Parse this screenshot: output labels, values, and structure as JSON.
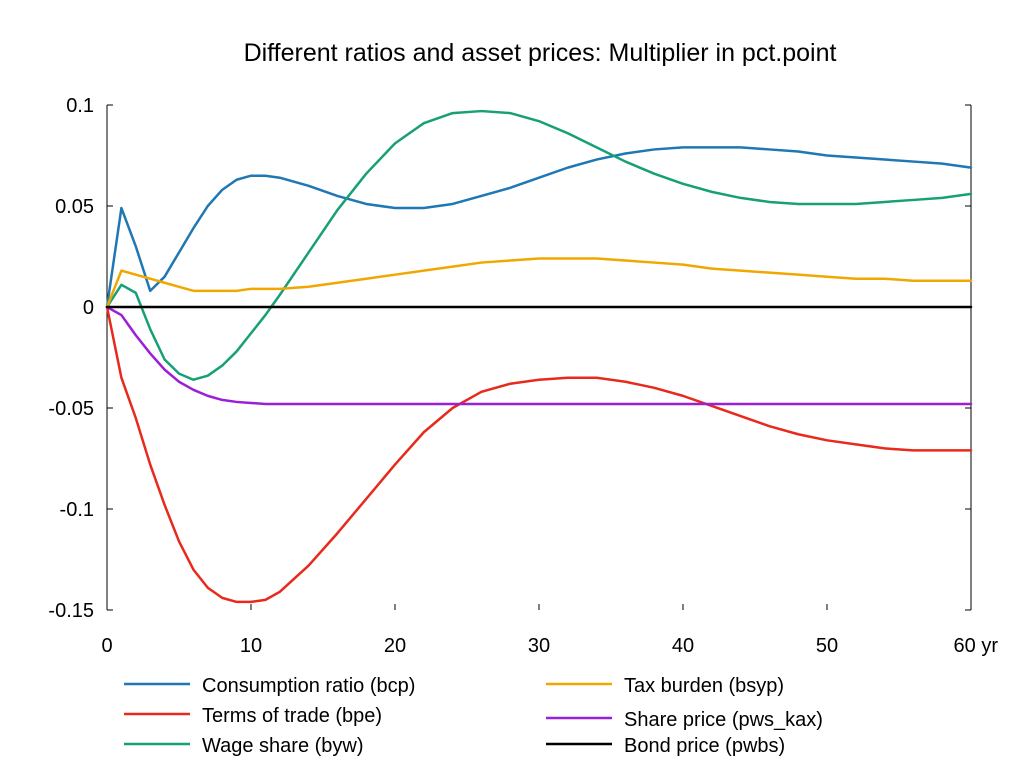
{
  "chart_data": {
    "type": "line",
    "title": "Different ratios and asset prices: Multiplier in pct.point",
    "xlabel": "",
    "ylabel": "",
    "xlim": [
      0,
      60
    ],
    "ylim": [
      -0.15,
      0.1
    ],
    "x_ticks": [
      "0",
      "10",
      "20",
      "30",
      "40",
      "50",
      "60 yr"
    ],
    "y_ticks": [
      "0.1",
      "0.05",
      "0",
      "-0.05",
      "-0.1",
      "-0.15"
    ],
    "x_tick_values": [
      0,
      10,
      20,
      30,
      40,
      50,
      60
    ],
    "y_tick_values": [
      0.1,
      0.05,
      0,
      -0.05,
      -0.1,
      -0.15
    ],
    "grid": false,
    "legend_position": "bottom",
    "series": [
      {
        "name": "Consumption ratio (bcp)",
        "color": "#1f77b4",
        "x": [
          0,
          1,
          2,
          3,
          4,
          5,
          6,
          7,
          8,
          9,
          10,
          11,
          12,
          14,
          16,
          18,
          20,
          22,
          24,
          26,
          28,
          30,
          32,
          34,
          36,
          38,
          40,
          42,
          44,
          46,
          48,
          50,
          52,
          54,
          56,
          58,
          60
        ],
        "y": [
          0,
          0.049,
          0.03,
          0.008,
          0.015,
          0.027,
          0.039,
          0.05,
          0.058,
          0.063,
          0.065,
          0.065,
          0.064,
          0.06,
          0.055,
          0.051,
          0.049,
          0.049,
          0.051,
          0.055,
          0.059,
          0.064,
          0.069,
          0.073,
          0.076,
          0.078,
          0.079,
          0.079,
          0.079,
          0.078,
          0.077,
          0.075,
          0.074,
          0.073,
          0.072,
          0.071,
          0.069
        ]
      },
      {
        "name": "Terms of trade (bpe)",
        "color": "#e8291c",
        "x": [
          0,
          1,
          2,
          3,
          4,
          5,
          6,
          7,
          8,
          9,
          10,
          11,
          12,
          14,
          16,
          18,
          20,
          22,
          24,
          26,
          28,
          30,
          32,
          34,
          36,
          38,
          40,
          42,
          44,
          46,
          48,
          50,
          52,
          54,
          56,
          58,
          60
        ],
        "y": [
          0,
          -0.035,
          -0.055,
          -0.078,
          -0.098,
          -0.116,
          -0.13,
          -0.139,
          -0.144,
          -0.146,
          -0.146,
          -0.145,
          -0.141,
          -0.128,
          -0.112,
          -0.095,
          -0.078,
          -0.062,
          -0.05,
          -0.042,
          -0.038,
          -0.036,
          -0.035,
          -0.035,
          -0.037,
          -0.04,
          -0.044,
          -0.049,
          -0.054,
          -0.059,
          -0.063,
          -0.066,
          -0.068,
          -0.07,
          -0.071,
          -0.071,
          -0.071
        ]
      },
      {
        "name": "Wage share (byw)",
        "color": "#17a077",
        "x": [
          0,
          1,
          2,
          3,
          4,
          5,
          6,
          7,
          8,
          9,
          10,
          11,
          12,
          14,
          16,
          18,
          20,
          22,
          24,
          26,
          28,
          30,
          32,
          34,
          36,
          38,
          40,
          42,
          44,
          46,
          48,
          50,
          52,
          54,
          56,
          58,
          60
        ],
        "y": [
          0,
          0.011,
          0.007,
          -0.011,
          -0.026,
          -0.033,
          -0.036,
          -0.034,
          -0.029,
          -0.022,
          -0.013,
          -0.004,
          0.006,
          0.027,
          0.048,
          0.066,
          0.081,
          0.091,
          0.096,
          0.097,
          0.096,
          0.092,
          0.086,
          0.079,
          0.072,
          0.066,
          0.061,
          0.057,
          0.054,
          0.052,
          0.051,
          0.051,
          0.051,
          0.052,
          0.053,
          0.054,
          0.056
        ]
      },
      {
        "name": "Tax burden (bsyp)",
        "color": "#f0a800",
        "x": [
          0,
          1,
          2,
          3,
          4,
          5,
          6,
          7,
          8,
          9,
          10,
          11,
          12,
          14,
          16,
          18,
          20,
          22,
          24,
          26,
          28,
          30,
          32,
          34,
          36,
          38,
          40,
          42,
          44,
          46,
          48,
          50,
          52,
          54,
          56,
          58,
          60
        ],
        "y": [
          0,
          0.018,
          0.016,
          0.014,
          0.012,
          0.01,
          0.008,
          0.008,
          0.008,
          0.008,
          0.009,
          0.009,
          0.009,
          0.01,
          0.012,
          0.014,
          0.016,
          0.018,
          0.02,
          0.022,
          0.023,
          0.024,
          0.024,
          0.024,
          0.023,
          0.022,
          0.021,
          0.019,
          0.018,
          0.017,
          0.016,
          0.015,
          0.014,
          0.014,
          0.013,
          0.013,
          0.013
        ]
      },
      {
        "name": "Share price (pws_kax)",
        "color": "#9b1fd6",
        "x": [
          0,
          1,
          2,
          3,
          4,
          5,
          6,
          7,
          8,
          9,
          10,
          11,
          12,
          14,
          16,
          18,
          20,
          22,
          24,
          26,
          28,
          30,
          32,
          34,
          36,
          38,
          40,
          42,
          44,
          46,
          48,
          50,
          52,
          54,
          56,
          58,
          60
        ],
        "y": [
          0,
          -0.004,
          -0.014,
          -0.023,
          -0.031,
          -0.037,
          -0.041,
          -0.044,
          -0.046,
          -0.047,
          -0.0475,
          -0.048,
          -0.048,
          -0.048,
          -0.048,
          -0.048,
          -0.048,
          -0.048,
          -0.048,
          -0.048,
          -0.048,
          -0.048,
          -0.048,
          -0.048,
          -0.048,
          -0.048,
          -0.048,
          -0.048,
          -0.048,
          -0.048,
          -0.048,
          -0.048,
          -0.048,
          -0.048,
          -0.048,
          -0.048,
          -0.048
        ]
      },
      {
        "name": "Bond price (pwbs)",
        "color": "#000000",
        "x": [
          0,
          60
        ],
        "y": [
          0,
          0
        ]
      }
    ]
  }
}
